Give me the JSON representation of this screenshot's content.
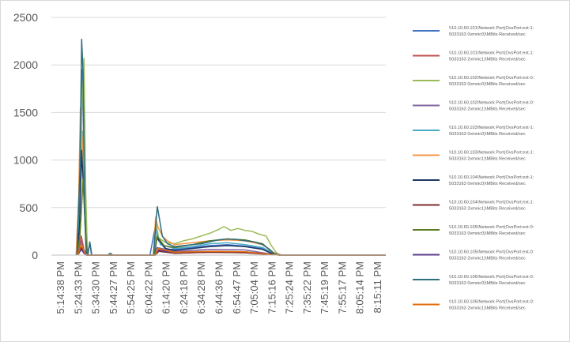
{
  "chart_data": {
    "type": "line",
    "title": "",
    "xlabel": "",
    "ylabel": "",
    "ylim": [
      0,
      2500
    ],
    "y_ticks": [
      0,
      500,
      1000,
      1500,
      2000,
      2500
    ],
    "grid": "horizontal",
    "legend_position": "right",
    "x_tick_labels": [
      "5:14:38 PM",
      "5:24:33 PM",
      "5:34:30 PM",
      "5:44:27 PM",
      "5:54:25 PM",
      "6:04:22 PM",
      "6:14:20 PM",
      "6:24:18 PM",
      "6:34:28 PM",
      "6:44:36 PM",
      "6:54:47 PM",
      "7:05:04 PM",
      "7:15:16 PM",
      "7:25:24 PM",
      "7:35:22 PM",
      "7:45:19 PM",
      "7:55:17 PM",
      "8:05:14 PM",
      "8:15:11 PM"
    ],
    "series": [
      {
        "name": "\\\\10.10.60.101\\Network Port(OvsPort:ext-1:5033163 0vmnic0)\\MBits Received/sec",
        "color": "#4472c4",
        "points": [
          [
            1.45,
            0
          ],
          [
            1.6,
            400
          ],
          [
            1.75,
            1950
          ],
          [
            1.9,
            600
          ],
          [
            2.0,
            0
          ],
          [
            2.2,
            120
          ],
          [
            2.3,
            0
          ],
          [
            5.0,
            0
          ],
          [
            5.6,
            0
          ],
          [
            5.9,
            300
          ],
          [
            6.1,
            150
          ],
          [
            6.5,
            60
          ],
          [
            7.2,
            60
          ],
          [
            8.0,
            80
          ],
          [
            9.0,
            100
          ],
          [
            10.0,
            110
          ],
          [
            11.0,
            95
          ],
          [
            12.0,
            70
          ],
          [
            12.6,
            10
          ],
          [
            13.0,
            0
          ],
          [
            19.0,
            0
          ]
        ]
      },
      {
        "name": "\\\\10.10.60.101\\Network Port(OvsPort:ext-1:5033163 2vmnic1)\\MBits Received/sec",
        "color": "#c0504d",
        "points": [
          [
            1.5,
            0
          ],
          [
            1.7,
            200
          ],
          [
            1.85,
            60
          ],
          [
            2.0,
            0
          ],
          [
            5.8,
            0
          ],
          [
            6.0,
            60
          ],
          [
            7.0,
            20
          ],
          [
            9.0,
            30
          ],
          [
            11.0,
            25
          ],
          [
            12.5,
            5
          ],
          [
            13.0,
            0
          ],
          [
            19.0,
            0
          ]
        ]
      },
      {
        "name": "\\\\10.10.60.102\\Network Port(OvsPort:ext-0:5033163 0vmnic0)\\MBits Received/sec",
        "color": "#9bbb59",
        "points": [
          [
            1.45,
            0
          ],
          [
            1.6,
            300
          ],
          [
            1.72,
            1500
          ],
          [
            1.85,
            2070
          ],
          [
            1.95,
            700
          ],
          [
            2.05,
            0
          ],
          [
            5.8,
            0
          ],
          [
            5.95,
            330
          ],
          [
            6.1,
            180
          ],
          [
            6.5,
            130
          ],
          [
            7.0,
            120
          ],
          [
            7.5,
            150
          ],
          [
            8.0,
            170
          ],
          [
            8.5,
            200
          ],
          [
            9.0,
            230
          ],
          [
            9.5,
            270
          ],
          [
            9.8,
            300
          ],
          [
            10.2,
            260
          ],
          [
            10.6,
            280
          ],
          [
            11.0,
            260
          ],
          [
            11.4,
            250
          ],
          [
            11.8,
            220
          ],
          [
            12.2,
            200
          ],
          [
            12.5,
            100
          ],
          [
            12.8,
            20
          ],
          [
            13.1,
            0
          ],
          [
            19.0,
            0
          ]
        ]
      },
      {
        "name": "\\\\10.10.60.102\\Network Port(OvsPort:ext-0:5033163 2vmnic1)\\MBits Received/sec",
        "color": "#8064a2",
        "points": [
          [
            1.5,
            0
          ],
          [
            1.7,
            150
          ],
          [
            1.85,
            50
          ],
          [
            2.0,
            0
          ],
          [
            5.85,
            0
          ],
          [
            6.0,
            80
          ],
          [
            7.0,
            40
          ],
          [
            9.0,
            60
          ],
          [
            11.0,
            55
          ],
          [
            12.5,
            10
          ],
          [
            13.0,
            0
          ],
          [
            19.0,
            0
          ]
        ]
      },
      {
        "name": "\\\\10.10.60.103\\Network Port(OvsPort:ext-1:5033163 0vmnic0)\\MBits Received/sec",
        "color": "#4bacc6",
        "points": [
          [
            1.45,
            0
          ],
          [
            1.62,
            500
          ],
          [
            1.78,
            1300
          ],
          [
            1.92,
            300
          ],
          [
            2.05,
            0
          ],
          [
            5.8,
            0
          ],
          [
            5.95,
            260
          ],
          [
            6.2,
            110
          ],
          [
            7.0,
            70
          ],
          [
            8.0,
            90
          ],
          [
            9.0,
            120
          ],
          [
            10.0,
            130
          ],
          [
            11.0,
            110
          ],
          [
            12.0,
            80
          ],
          [
            12.7,
            10
          ],
          [
            13.0,
            0
          ],
          [
            19.0,
            0
          ]
        ]
      },
      {
        "name": "\\\\10.10.60.103\\Network Port(OvsPort:ext-1:5033163 2vmnic1)\\MBits Received/sec",
        "color": "#f79646",
        "points": [
          [
            1.4,
            0
          ],
          [
            1.55,
            600
          ],
          [
            1.65,
            1550
          ],
          [
            1.75,
            1200
          ],
          [
            1.85,
            900
          ],
          [
            1.95,
            100
          ],
          [
            2.05,
            0
          ],
          [
            5.8,
            0
          ],
          [
            5.92,
            400
          ],
          [
            6.05,
            300
          ],
          [
            6.3,
            200
          ],
          [
            6.6,
            150
          ],
          [
            7.0,
            110
          ],
          [
            8.0,
            130
          ],
          [
            9.0,
            150
          ],
          [
            10.0,
            160
          ],
          [
            11.0,
            150
          ],
          [
            12.0,
            110
          ],
          [
            12.6,
            30
          ],
          [
            13.0,
            0
          ],
          [
            19.0,
            0
          ]
        ]
      },
      {
        "name": "\\\\10.10.60.104\\Network Port(OvsPort:ext-1:5033163 0vmnic0)\\MBits Received/sec",
        "color": "#1f3864",
        "points": [
          [
            1.45,
            0
          ],
          [
            1.6,
            300
          ],
          [
            1.72,
            1100
          ],
          [
            1.88,
            500
          ],
          [
            2.0,
            0
          ],
          [
            5.85,
            0
          ],
          [
            6.0,
            180
          ],
          [
            6.5,
            70
          ],
          [
            7.0,
            50
          ],
          [
            8.0,
            70
          ],
          [
            9.0,
            90
          ],
          [
            10.0,
            100
          ],
          [
            11.0,
            90
          ],
          [
            12.0,
            60
          ],
          [
            12.6,
            10
          ],
          [
            13.0,
            0
          ],
          [
            19.0,
            0
          ]
        ]
      },
      {
        "name": "\\\\10.10.60.104\\Network Port(OvsPort:ext-1:5033163 2vmnic1)\\MBits Received/sec",
        "color": "#7b2c2c",
        "points": [
          [
            1.5,
            0
          ],
          [
            1.7,
            80
          ],
          [
            1.85,
            30
          ],
          [
            2.0,
            0
          ],
          [
            5.9,
            0
          ],
          [
            6.1,
            40
          ],
          [
            7.0,
            20
          ],
          [
            9.0,
            30
          ],
          [
            11.0,
            25
          ],
          [
            12.5,
            5
          ],
          [
            13.0,
            0
          ],
          [
            19.0,
            0
          ]
        ]
      },
      {
        "name": "\\\\10.10.60.105\\Network Port(OvsPort:ext-0:5033163 0vmnic0)\\MBits Received/sec",
        "color": "#5a7a1e",
        "points": [
          [
            1.45,
            0
          ],
          [
            1.62,
            200
          ],
          [
            1.8,
            800
          ],
          [
            1.92,
            300
          ],
          [
            2.05,
            0
          ],
          [
            5.85,
            0
          ],
          [
            6.0,
            200
          ],
          [
            6.4,
            100
          ],
          [
            7.0,
            80
          ],
          [
            8.0,
            110
          ],
          [
            9.0,
            150
          ],
          [
            10.0,
            170
          ],
          [
            11.0,
            160
          ],
          [
            12.0,
            120
          ],
          [
            12.6,
            20
          ],
          [
            13.0,
            0
          ],
          [
            19.0,
            0
          ]
        ]
      },
      {
        "name": "\\\\10.10.60.105\\Network Port(OvsPort:ext-0:5033163 2vmnic1)\\MBits Received/sec",
        "color": "#5b3a8c",
        "points": [
          [
            1.5,
            0
          ],
          [
            1.7,
            60
          ],
          [
            1.85,
            20
          ],
          [
            2.0,
            0
          ],
          [
            5.9,
            0
          ],
          [
            6.1,
            50
          ],
          [
            7.0,
            30
          ],
          [
            9.0,
            40
          ],
          [
            11.0,
            35
          ],
          [
            12.5,
            5
          ],
          [
            13.0,
            0
          ],
          [
            19.0,
            0
          ]
        ]
      },
      {
        "name": "\\\\10.10.60.106\\Network Port(OvsPort:ext-0:5033163 0vmnic0)\\MBits Received/sec",
        "color": "#2f6e7c",
        "points": [
          [
            1.45,
            0
          ],
          [
            1.62,
            900
          ],
          [
            1.72,
            2270
          ],
          [
            1.8,
            1900
          ],
          [
            1.9,
            400
          ],
          [
            1.98,
            0
          ],
          [
            2.08,
            0
          ],
          [
            2.18,
            140
          ],
          [
            2.28,
            0
          ],
          [
            3.2,
            0
          ],
          [
            3.35,
            20
          ],
          [
            3.5,
            0
          ],
          [
            5.8,
            0
          ],
          [
            5.92,
            300
          ],
          [
            6.02,
            510
          ],
          [
            6.12,
            400
          ],
          [
            6.3,
            200
          ],
          [
            6.6,
            120
          ],
          [
            7.0,
            90
          ],
          [
            7.5,
            100
          ],
          [
            8.0,
            110
          ],
          [
            8.5,
            120
          ],
          [
            9.0,
            140
          ],
          [
            9.5,
            160
          ],
          [
            10.0,
            170
          ],
          [
            10.5,
            165
          ],
          [
            11.0,
            150
          ],
          [
            11.5,
            140
          ],
          [
            12.0,
            110
          ],
          [
            12.4,
            60
          ],
          [
            12.7,
            10
          ],
          [
            13.0,
            0
          ],
          [
            19.0,
            0
          ]
        ]
      },
      {
        "name": "\\\\10.10.60.106\\Network Port(OvsPort:ext-0:5033163 2vmnic1)\\MBits Received/sec",
        "color": "#e46c0a",
        "points": [
          [
            1.5,
            0
          ],
          [
            1.7,
            120
          ],
          [
            1.85,
            40
          ],
          [
            2.0,
            0
          ],
          [
            5.9,
            0
          ],
          [
            6.05,
            70
          ],
          [
            7.0,
            30
          ],
          [
            9.0,
            40
          ],
          [
            11.0,
            35
          ],
          [
            12.5,
            5
          ],
          [
            13.0,
            0
          ],
          [
            19.0,
            0
          ]
        ]
      }
    ]
  }
}
